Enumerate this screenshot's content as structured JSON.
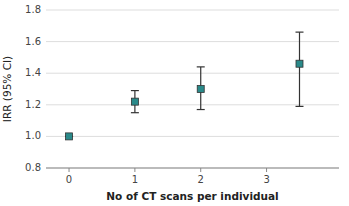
{
  "chart_data": {
    "type": "scatter",
    "xlabel": "No of CT scans per individual",
    "ylabel": "IRR (95% CI)",
    "x": [
      0,
      1,
      2,
      3.5
    ],
    "values": [
      1.0,
      1.22,
      1.3,
      1.46
    ],
    "error_low": [
      0.0,
      0.07,
      0.13,
      0.27
    ],
    "error_high": [
      0.0,
      0.07,
      0.14,
      0.2
    ],
    "color": "#2a8a8a",
    "marker": "square",
    "xlim": [
      -0.35,
      4.1
    ],
    "ylim": [
      0.8,
      1.8
    ],
    "xticks": [
      0,
      1,
      2,
      3
    ],
    "yticks": [
      0.8,
      {
        "value": 1.0,
        "label": "1.0"
      },
      1.2,
      1.4,
      1.6,
      1.8
    ],
    "grid": true
  }
}
